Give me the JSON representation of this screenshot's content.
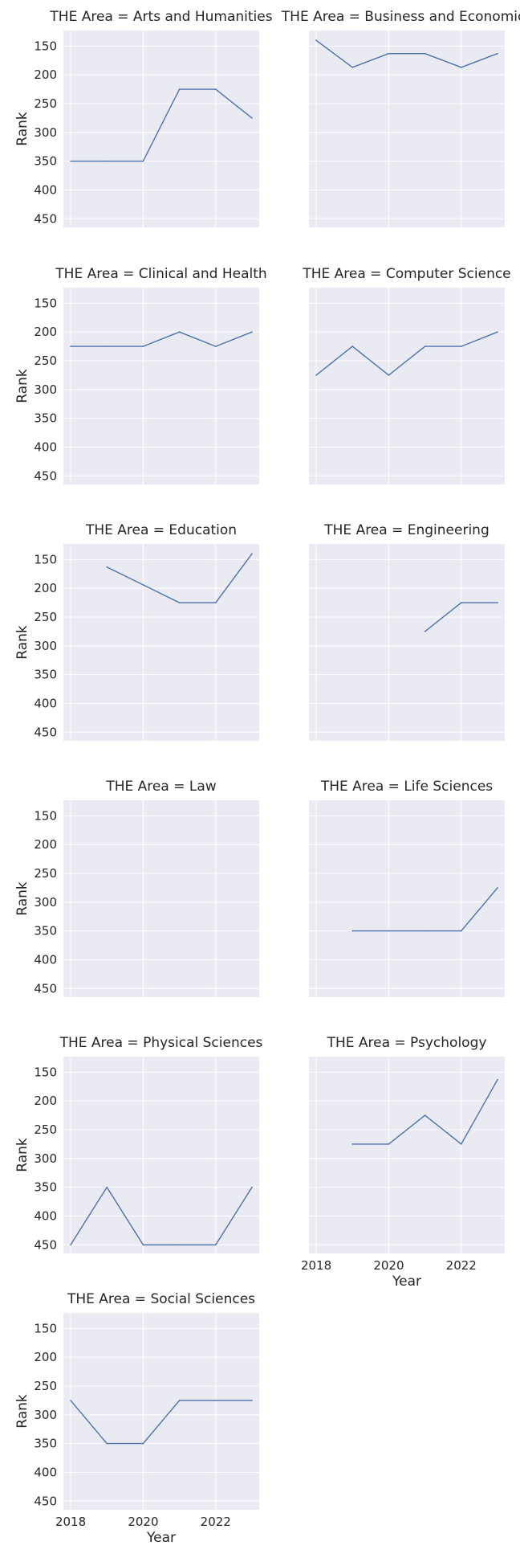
{
  "chart_data": {
    "type": "line",
    "facet_prefix": "THE Area = ",
    "xlabel": "Year",
    "ylabel": "Rank",
    "xlim": [
      2017.8,
      2023.2
    ],
    "ylim": [
      465,
      123
    ],
    "y_inverted": true,
    "xticks": [
      2018,
      2020,
      2022
    ],
    "yticks": [
      150,
      200,
      250,
      300,
      350,
      400,
      450
    ],
    "grid": true,
    "background": "#eaeaf2",
    "gridline_color": "#ffffff",
    "line_color": "#4c72b0",
    "x_tick_labels_shown_on": [
      "Psychology",
      "Social Sciences"
    ],
    "panels": [
      {
        "area": "Arts and Humanities",
        "x": [
          2018,
          2019,
          2020,
          2021,
          2022,
          2023
        ],
        "y": [
          350,
          350,
          350,
          225,
          225,
          275
        ]
      },
      {
        "area": "Business and Economics",
        "x": [
          2018,
          2019,
          2020,
          2021,
          2022,
          2023
        ],
        "y": [
          140,
          187,
          163,
          163,
          187,
          163
        ]
      },
      {
        "area": "Clinical and Health",
        "x": [
          2018,
          2019,
          2020,
          2021,
          2022,
          2023
        ],
        "y": [
          225,
          225,
          225,
          200,
          225,
          200
        ]
      },
      {
        "area": "Computer Science",
        "x": [
          2018,
          2019,
          2020,
          2021,
          2022,
          2023
        ],
        "y": [
          275,
          225,
          275,
          225,
          225,
          200
        ]
      },
      {
        "area": "Education",
        "x": [
          2019,
          2020,
          2021,
          2022,
          2023
        ],
        "y": [
          163,
          194,
          225,
          225,
          140
        ]
      },
      {
        "area": "Engineering",
        "x": [
          2021,
          2022,
          2023
        ],
        "y": [
          275,
          225,
          225
        ]
      },
      {
        "area": "Law",
        "x": [],
        "y": []
      },
      {
        "area": "Life Sciences",
        "x": [
          2019,
          2020,
          2021,
          2022,
          2023
        ],
        "y": [
          350,
          350,
          350,
          350,
          275
        ]
      },
      {
        "area": "Physical Sciences",
        "x": [
          2018,
          2019,
          2020,
          2021,
          2022,
          2023
        ],
        "y": [
          450,
          350,
          450,
          450,
          450,
          350
        ]
      },
      {
        "area": "Psychology",
        "x": [
          2019,
          2020,
          2021,
          2022,
          2023
        ],
        "y": [
          275,
          275,
          225,
          275,
          163
        ]
      },
      {
        "area": "Social Sciences",
        "x": [
          2018,
          2019,
          2020,
          2021,
          2022,
          2023
        ],
        "y": [
          275,
          350,
          350,
          275,
          275,
          275
        ]
      }
    ]
  }
}
